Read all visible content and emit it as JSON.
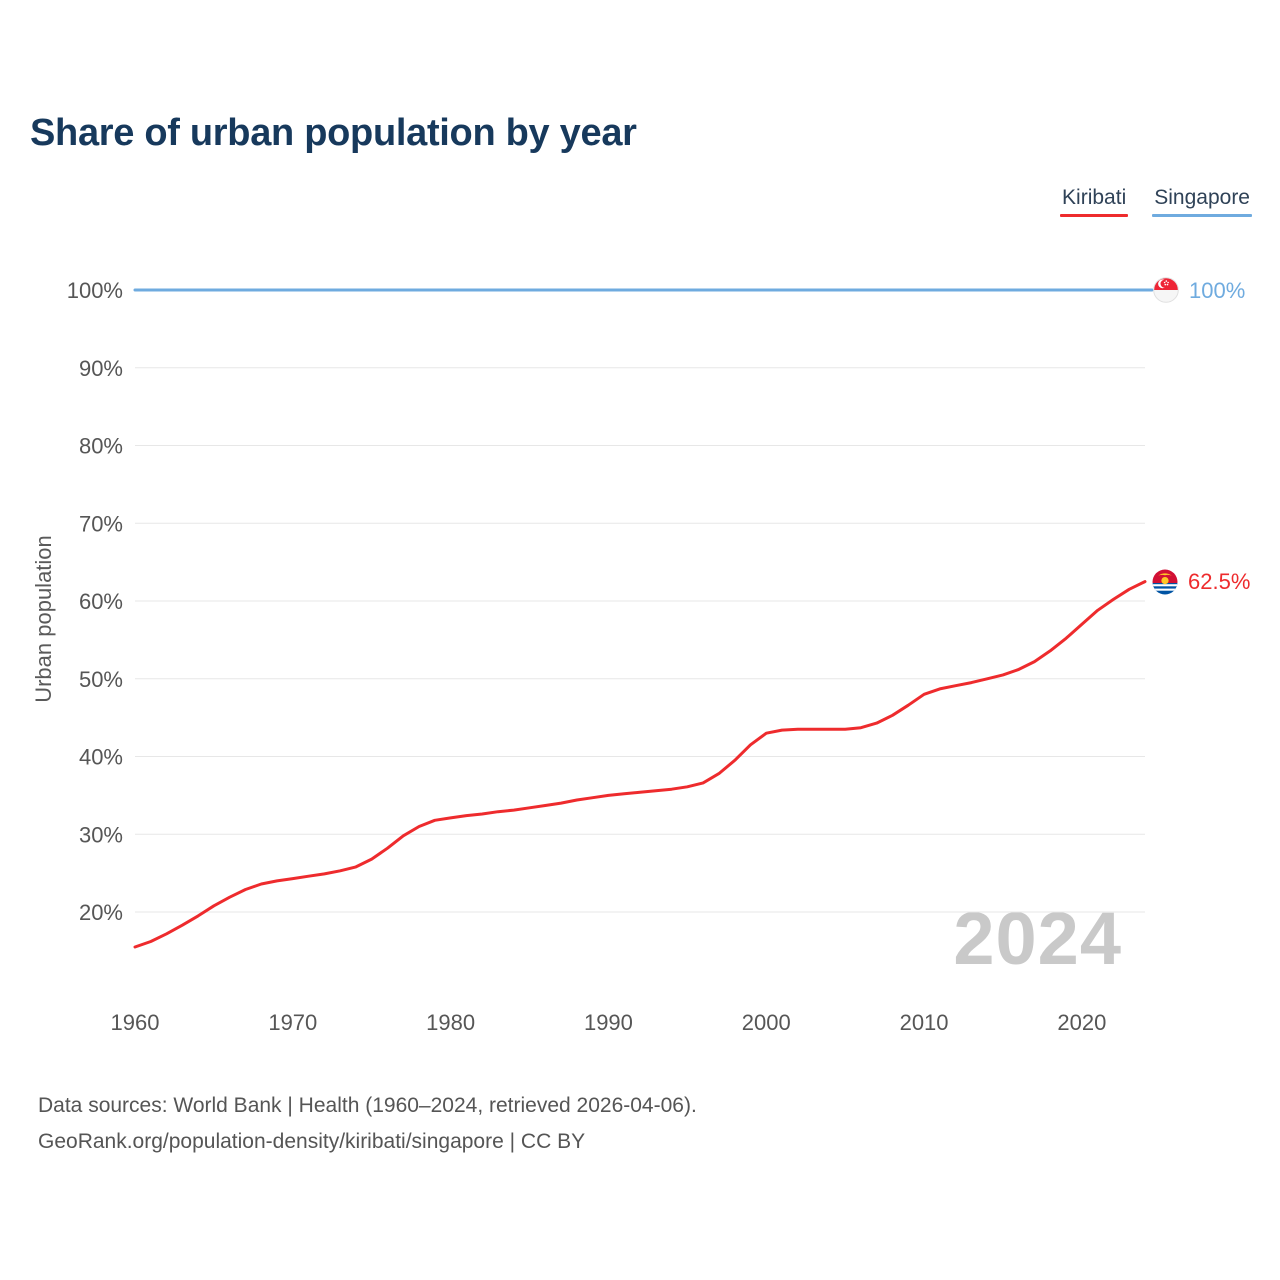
{
  "title": "Share of urban population by year",
  "legend": {
    "items": [
      {
        "label": "Kiribati",
        "color": "#ee2b2d"
      },
      {
        "label": "Singapore",
        "color": "#6fabdf"
      }
    ]
  },
  "y_axis": {
    "title": "Urban population"
  },
  "watermark": "2024",
  "end_labels": {
    "singapore": {
      "text": "100%",
      "icon": "singapore-flag-icon"
    },
    "kiribati": {
      "text": "62.5%",
      "icon": "kiribati-flag-icon"
    }
  },
  "footer": {
    "line1": "Data sources: World Bank | Health (1960–2024, retrieved 2026-04-06).",
    "line2": "GeoRank.org/population-density/kiribati/singapore | CC BY"
  },
  "chart_data": {
    "type": "line",
    "title": "Share of urban population by year",
    "xlabel": "",
    "ylabel": "Urban population",
    "grid": "horizontal",
    "legend_position": "top-right",
    "x_years": {
      "start": 1960,
      "end": 2024,
      "step": 1
    },
    "x_ticks": [
      1960,
      1970,
      1980,
      1990,
      2000,
      2010,
      2020
    ],
    "y_ticks": [
      {
        "value": 20,
        "label": "20%"
      },
      {
        "value": 30,
        "label": "30%"
      },
      {
        "value": 40,
        "label": "40%"
      },
      {
        "value": 50,
        "label": "50%"
      },
      {
        "value": 60,
        "label": "60%"
      },
      {
        "value": 70,
        "label": "70%"
      },
      {
        "value": 80,
        "label": "80%"
      },
      {
        "value": 90,
        "label": "90%"
      },
      {
        "value": 100,
        "label": "100%"
      }
    ],
    "ylim": [
      13,
      103
    ],
    "series": [
      {
        "name": "Kiribati",
        "color": "#ee2b2d",
        "end_label": "62.5%",
        "values": [
          15.5,
          16.2,
          17.2,
          18.3,
          19.5,
          20.8,
          21.9,
          22.9,
          23.6,
          24.0,
          24.3,
          24.6,
          24.9,
          25.3,
          25.8,
          26.8,
          28.2,
          29.8,
          31.0,
          31.8,
          32.1,
          32.4,
          32.6,
          32.9,
          33.1,
          33.4,
          33.7,
          34.0,
          34.4,
          34.7,
          35.0,
          35.2,
          35.4,
          35.6,
          35.8,
          36.1,
          36.6,
          37.8,
          39.5,
          41.5,
          43.0,
          43.4,
          43.5,
          43.5,
          43.5,
          43.5,
          43.7,
          44.3,
          45.3,
          46.6,
          48.0,
          48.7,
          49.1,
          49.5,
          50.0,
          50.5,
          51.2,
          52.2,
          53.6,
          55.2,
          57.0,
          58.8,
          60.2,
          61.5,
          62.5
        ]
      },
      {
        "name": "Singapore",
        "color": "#6fabdf",
        "end_label": "100%",
        "values_constant": 100
      }
    ]
  }
}
